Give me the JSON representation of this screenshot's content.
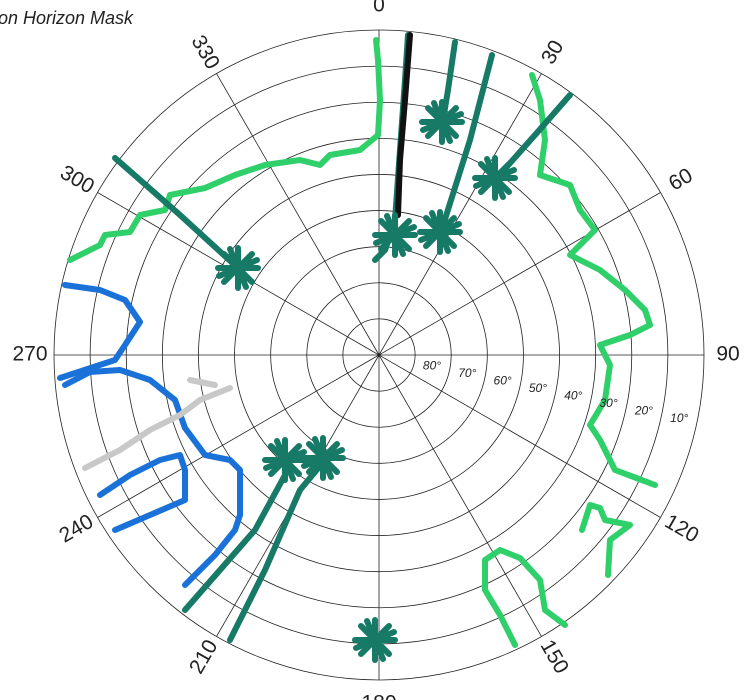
{
  "title": "on Horizon Mask",
  "azimuth_labels": [
    "0",
    "30",
    "60",
    "90",
    "120",
    "150",
    "180",
    "210",
    "240",
    "270",
    "300",
    "330"
  ],
  "elevation_labels": [
    "80°",
    "70°",
    "60°",
    "50°",
    "40°",
    "30°",
    "20°",
    "10°"
  ]
}
